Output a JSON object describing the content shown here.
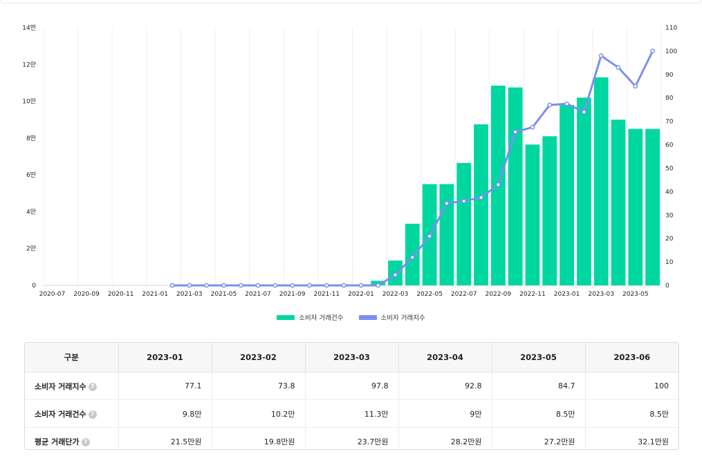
{
  "chart_data": {
    "type": "bar+line",
    "x": [
      "2020-07",
      "2020-08",
      "2020-09",
      "2020-10",
      "2020-11",
      "2020-12",
      "2021-01",
      "2021-02",
      "2021-03",
      "2021-04",
      "2021-05",
      "2021-06",
      "2021-07",
      "2021-08",
      "2021-09",
      "2021-10",
      "2021-11",
      "2021-12",
      "2022-01",
      "2022-02",
      "2022-03",
      "2022-04",
      "2022-05",
      "2022-06",
      "2022-07",
      "2022-08",
      "2022-09",
      "2022-10",
      "2022-11",
      "2022-12",
      "2023-01",
      "2023-02",
      "2023-03",
      "2023-04",
      "2023-05",
      "2023-06"
    ],
    "x_tick_labels": [
      "2020-07",
      "2020-09",
      "2020-11",
      "2021-01",
      "2021-03",
      "2021-05",
      "2021-07",
      "2021-09",
      "2021-11",
      "2022-01",
      "2022-03",
      "2022-05",
      "2022-07",
      "2022-09",
      "2022-11",
      "2023-01",
      "2023-03",
      "2023-05"
    ],
    "series": [
      {
        "name": "소비자 거래건수",
        "type": "bar",
        "axis": "left",
        "values": [
          0,
          0,
          0,
          0,
          0,
          0,
          0,
          0,
          0,
          0,
          0,
          0,
          0,
          0,
          0,
          0,
          0,
          0,
          0,
          2500,
          13500,
          33500,
          55000,
          55000,
          66500,
          87500,
          108500,
          107500,
          76500,
          81000,
          98000,
          102000,
          113000,
          90000,
          85000,
          85000
        ]
      },
      {
        "name": "소비자 거래지수",
        "type": "line",
        "axis": "right",
        "values": [
          null,
          null,
          null,
          null,
          null,
          null,
          null,
          0,
          0,
          0,
          0,
          0,
          0,
          0,
          0,
          0,
          0,
          0,
          0,
          0,
          4.5,
          12,
          21,
          35,
          36,
          37.5,
          43,
          65.5,
          67.5,
          77,
          77.5,
          74,
          98,
          93,
          85,
          100
        ]
      }
    ],
    "y_left": {
      "range": [
        0,
        140000
      ],
      "ticks": [
        0,
        20000,
        40000,
        60000,
        80000,
        100000,
        120000,
        140000
      ],
      "tick_labels": [
        "0",
        "2만",
        "4만",
        "6만",
        "8만",
        "10만",
        "12만",
        "14만"
      ]
    },
    "y_right": {
      "range": [
        0,
        110
      ],
      "ticks": [
        0,
        10,
        20,
        30,
        40,
        50,
        60,
        70,
        80,
        90,
        100,
        110
      ]
    },
    "grid": "vertical",
    "legend": "bottom-center",
    "colors": {
      "bar": "#00d7a0",
      "line": "#7b8ff0"
    }
  },
  "legend": {
    "items": [
      {
        "label": "소비자 거래건수",
        "color": "#00d7a0"
      },
      {
        "label": "소비자 거래지수",
        "color": "#7b8ff0"
      }
    ]
  },
  "table": {
    "corner_header": "구분",
    "columns": [
      "2023-01",
      "2023-02",
      "2023-03",
      "2023-04",
      "2023-05",
      "2023-06"
    ],
    "rows": [
      {
        "label": "소비자 거래지수",
        "help_icon": "question-icon",
        "values": [
          "77.1",
          "73.8",
          "97.8",
          "92.8",
          "84.7",
          "100"
        ]
      },
      {
        "label": "소비자 거래건수",
        "help_icon": "question-icon",
        "values": [
          "9.8만",
          "10.2만",
          "11.3만",
          "9만",
          "8.5만",
          "8.5만"
        ]
      },
      {
        "label": "평균 거래단가",
        "help_icon": "question-icon",
        "values": [
          "21.5만원",
          "19.8만원",
          "23.7만원",
          "28.2만원",
          "27.2만원",
          "32.1만원"
        ]
      }
    ]
  }
}
